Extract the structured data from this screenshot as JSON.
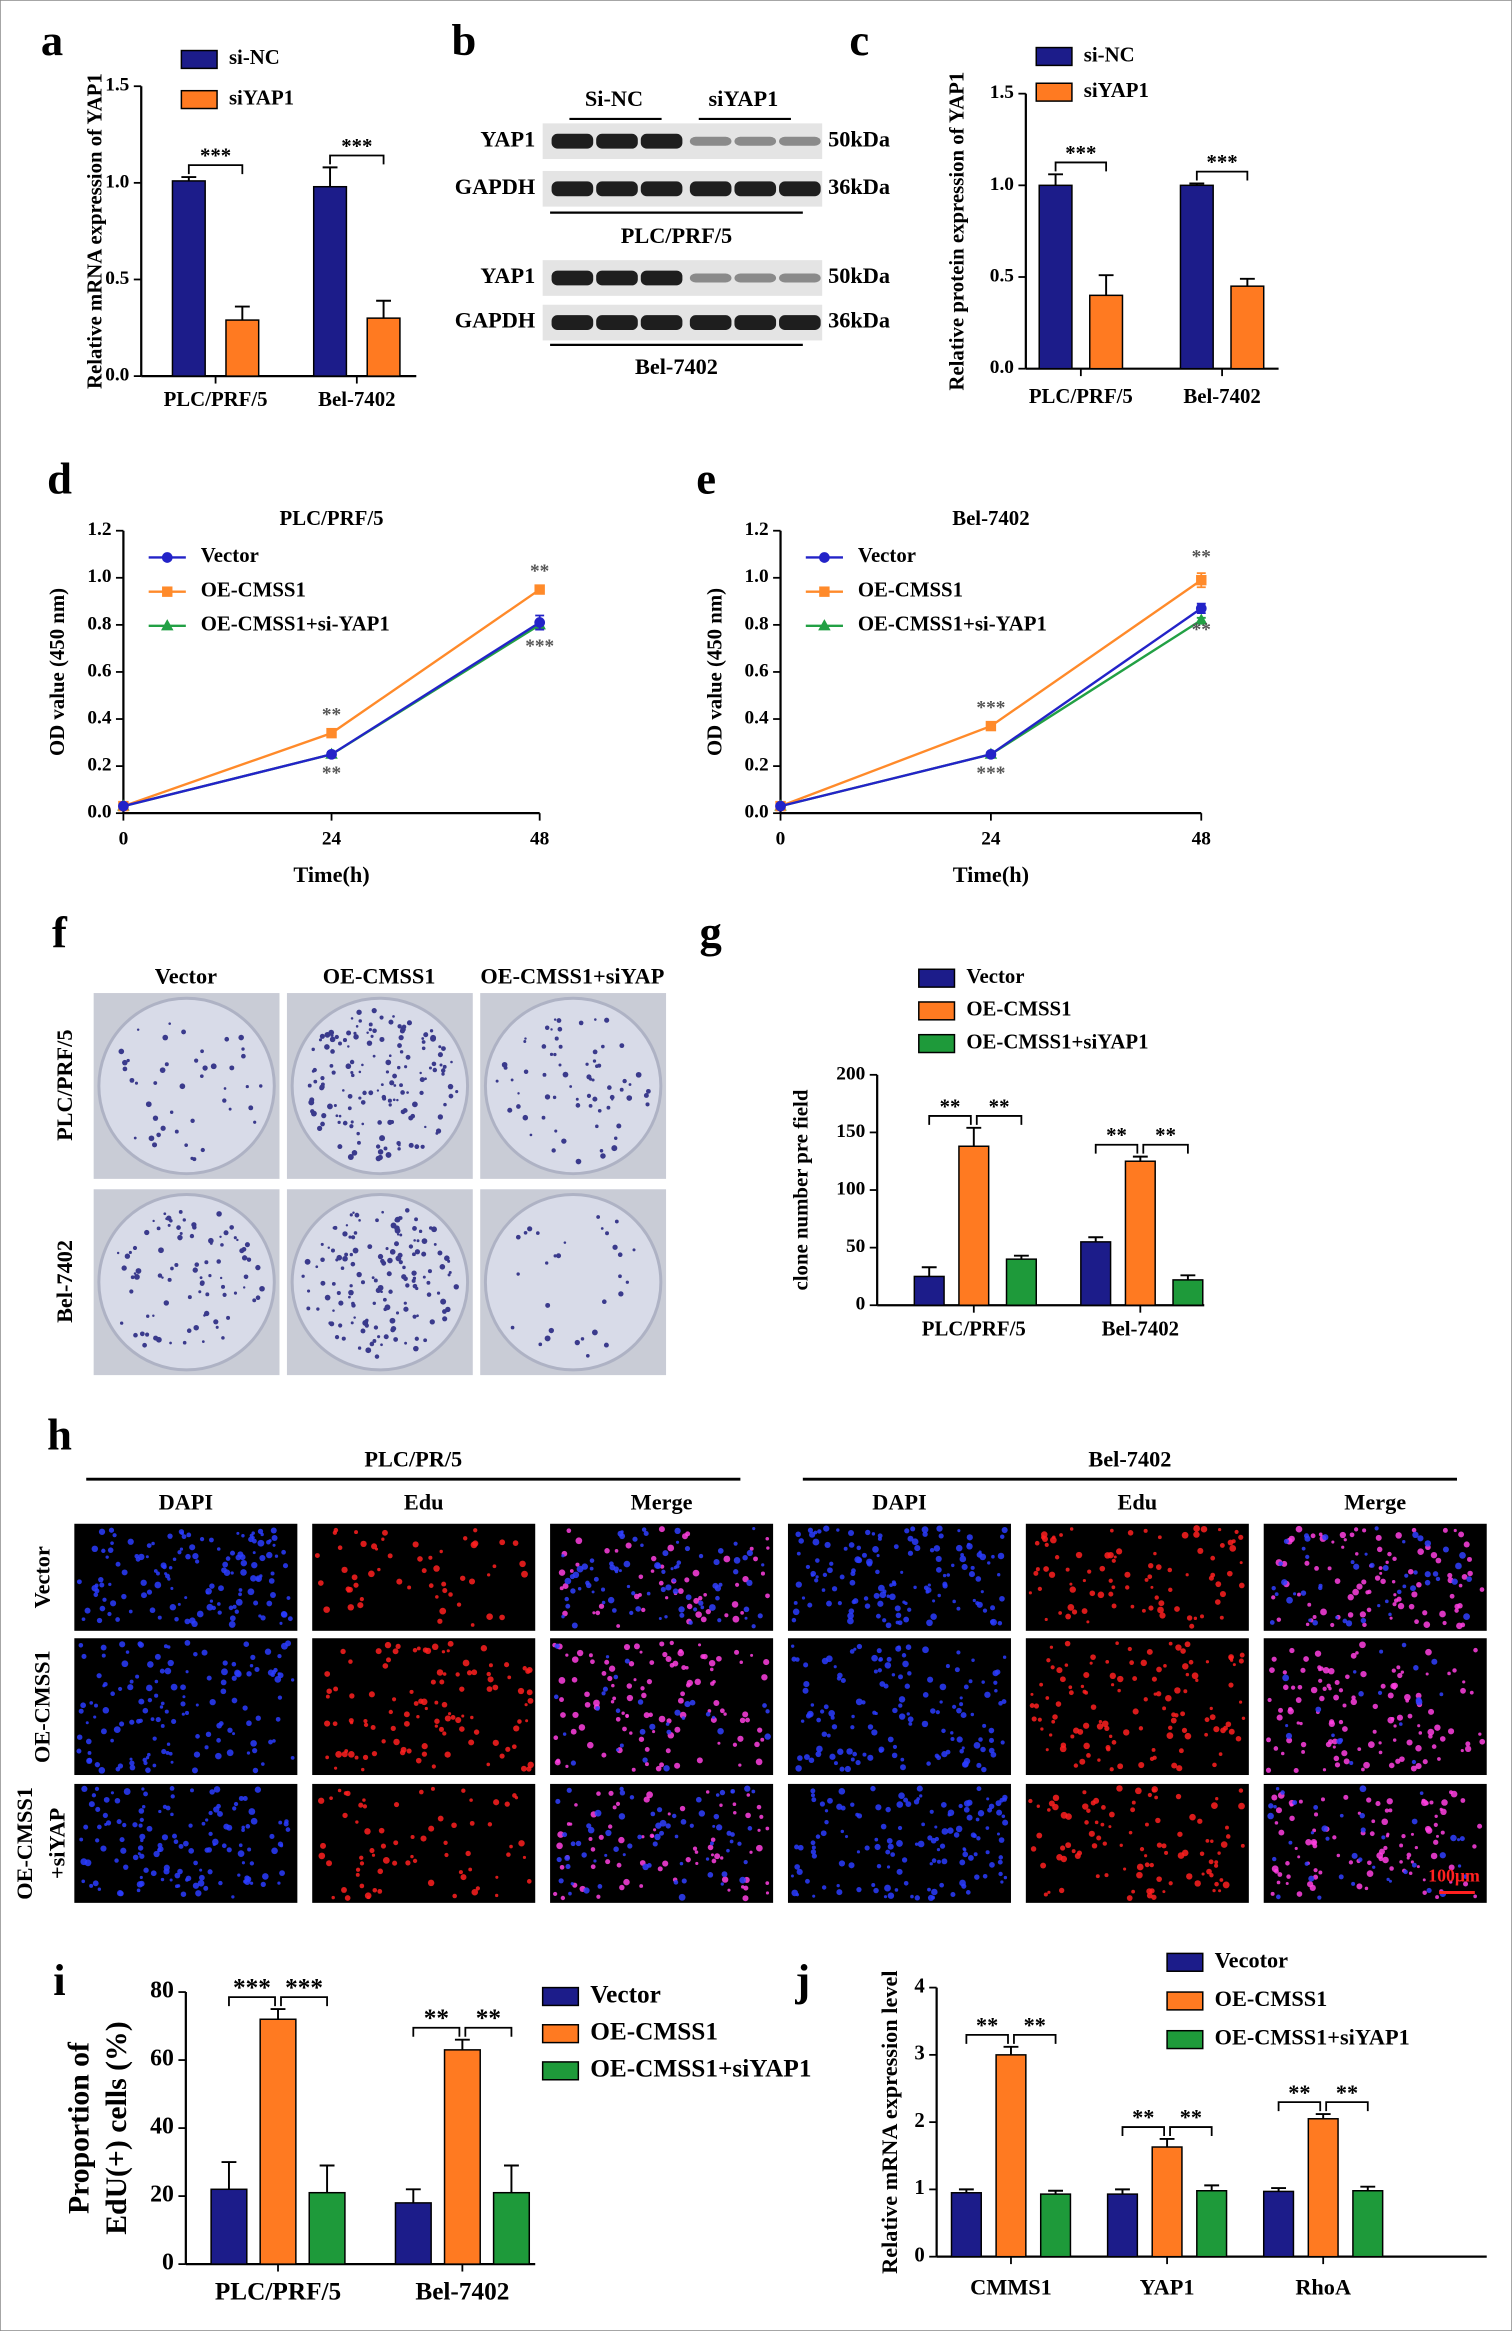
{
  "chart_data": [
    {
      "type": "bar",
      "panel": "a",
      "ylabel": "Relative mRNA expression of YAP1",
      "categories": [
        "PLC/PRF/5",
        "Bel-7402"
      ],
      "series": [
        {
          "name": "si-NC",
          "color": "#1c1c8a",
          "values": [
            1.01,
            0.98
          ],
          "errors": [
            0.02,
            0.1
          ]
        },
        {
          "name": "siYAP1",
          "color": "#ff7a21",
          "values": [
            0.29,
            0.3
          ],
          "errors": [
            0.07,
            0.09
          ]
        }
      ],
      "ylim": [
        0,
        1.5
      ],
      "yticks": [
        {
          "value": 0,
          "label": "0.0"
        },
        0.5,
        {
          "value": 1,
          "label": "1.0"
        },
        1.5
      ],
      "annotations": [
        "***",
        "***"
      ]
    },
    {
      "type": "bar",
      "panel": "c",
      "ylabel": "Relative protein expression of YAP1",
      "categories": [
        "PLC/PRF/5",
        "Bel-7402"
      ],
      "series": [
        {
          "name": "si-NC",
          "color": "#1c1c8a",
          "values": [
            1.0,
            1.0
          ],
          "errors": [
            0.06,
            0.01
          ]
        },
        {
          "name": "siYAP1",
          "color": "#ff7a21",
          "values": [
            0.4,
            0.45
          ],
          "errors": [
            0.11,
            0.04
          ]
        }
      ],
      "ylim": [
        0,
        1.5
      ],
      "yticks": [
        {
          "value": 0,
          "label": "0.0"
        },
        0.5,
        {
          "value": 1,
          "label": "1.0"
        },
        1.5
      ],
      "annotations": [
        "***",
        "***"
      ]
    },
    {
      "type": "line",
      "panel": "d",
      "title": "PLC/PRF/5",
      "xlabel": "Time(h)",
      "ylabel": "OD value (450 nm)",
      "x": [
        0,
        24,
        48
      ],
      "xlim": [
        0,
        48
      ],
      "xticks": [
        0,
        24,
        48
      ],
      "ylim": [
        0,
        1.2
      ],
      "yticks": [
        {
          "value": 0,
          "label": "0.0"
        },
        0.2,
        0.4,
        0.6,
        0.8,
        {
          "value": 1,
          "label": "1.0"
        },
        1.2
      ],
      "series": [
        {
          "name": "Vector",
          "color": "#2323c8",
          "marker": "circle",
          "values": [
            0.03,
            0.25,
            0.81
          ],
          "errors": [
            0.01,
            0.01,
            0.03
          ]
        },
        {
          "name": "OE-CMSS1",
          "color": "#ff8a2a",
          "marker": "square",
          "values": [
            0.03,
            0.34,
            0.95
          ],
          "errors": [
            0.01,
            0.01,
            0.01
          ]
        },
        {
          "name": "OE-CMSS1+si-YAP1",
          "color": "#22a044",
          "marker": "triangle",
          "values": [
            0.03,
            0.25,
            0.8
          ],
          "errors": [
            0.01,
            0.01,
            0.01
          ]
        }
      ],
      "annotations": [
        "**",
        "**",
        "**",
        "***"
      ]
    },
    {
      "type": "line",
      "panel": "e",
      "title": "Bel-7402",
      "xlabel": "Time(h)",
      "ylabel": "OD value (450 nm)",
      "x": [
        0,
        24,
        48
      ],
      "xlim": [
        0,
        48
      ],
      "xticks": [
        0,
        24,
        48
      ],
      "ylim": [
        0,
        1.2
      ],
      "yticks": [
        {
          "value": 0,
          "label": "0.0"
        },
        0.2,
        0.4,
        0.6,
        0.8,
        {
          "value": 1,
          "label": "1.0"
        },
        1.2
      ],
      "series": [
        {
          "name": "Vector",
          "color": "#2323c8",
          "marker": "circle",
          "values": [
            0.03,
            0.25,
            0.87
          ],
          "errors": [
            0.01,
            0.01,
            0.02
          ]
        },
        {
          "name": "OE-CMSS1",
          "color": "#ff8a2a",
          "marker": "square",
          "values": [
            0.03,
            0.37,
            0.99
          ],
          "errors": [
            0.01,
            0.01,
            0.03
          ]
        },
        {
          "name": "OE-CMSS1+si-YAP1",
          "color": "#22a044",
          "marker": "triangle",
          "values": [
            0.03,
            0.25,
            0.82
          ],
          "errors": [
            0.01,
            0.01,
            0.01
          ]
        }
      ],
      "annotations": [
        "***",
        "***",
        "**",
        "**"
      ]
    },
    {
      "type": "bar",
      "panel": "g",
      "ylabel": "clone number pre field",
      "categories": [
        "PLC/PRF/5",
        "Bel-7402"
      ],
      "series": [
        {
          "name": "Vector",
          "color": "#1c1c8a",
          "values": [
            25,
            55
          ],
          "errors": [
            8,
            4
          ]
        },
        {
          "name": "OE-CMSS1",
          "color": "#ff7a21",
          "values": [
            138,
            125
          ],
          "errors": [
            16,
            4
          ]
        },
        {
          "name": "OE-CMSS1+siYAP1",
          "color": "#1e9a3a",
          "values": [
            40,
            22
          ],
          "errors": [
            3,
            4
          ]
        }
      ],
      "ylim": [
        0,
        200
      ],
      "yticks": [
        0,
        50,
        100,
        150,
        200
      ],
      "annotations": [
        "**",
        "**",
        "**",
        "**"
      ]
    },
    {
      "type": "bar",
      "panel": "i",
      "ylabel": [
        "Proportion of",
        "EdU(+) cells (%)"
      ],
      "categories": [
        "PLC/PRF/5",
        "Bel-7402"
      ],
      "series": [
        {
          "name": "Vector",
          "color": "#1c1c8a",
          "values": [
            22,
            18
          ],
          "errors": [
            8,
            4
          ]
        },
        {
          "name": "OE-CMSS1",
          "color": "#ff7a21",
          "values": [
            72,
            63
          ],
          "errors": [
            3,
            3
          ]
        },
        {
          "name": "OE-CMSS1+siYAP1",
          "color": "#1e9a3a",
          "values": [
            21,
            21
          ],
          "errors": [
            8,
            8
          ]
        }
      ],
      "ylim": [
        0,
        80
      ],
      "yticks": [
        0,
        20,
        40,
        60,
        80
      ],
      "annotations": [
        "***",
        "***",
        "**",
        "**"
      ]
    },
    {
      "type": "bar",
      "panel": "j",
      "ylabel": "Relative mRNA expression level",
      "categories": [
        "CMMS1",
        "YAP1",
        "RhoA"
      ],
      "series": [
        {
          "name": "Vecotor",
          "color": "#1c1c8a",
          "values": [
            0.95,
            0.93,
            0.97
          ],
          "errors": [
            0.05,
            0.07,
            0.05
          ]
        },
        {
          "name": "OE-CMSS1",
          "color": "#ff7a21",
          "values": [
            3.0,
            1.63,
            2.05
          ],
          "errors": [
            0.12,
            0.12,
            0.07
          ]
        },
        {
          "name": "OE-CMSS1+siYAP1",
          "color": "#1e9a3a",
          "values": [
            0.93,
            0.98,
            0.98
          ],
          "errors": [
            0.05,
            0.08,
            0.06
          ]
        }
      ],
      "ylim": [
        0,
        4
      ],
      "yticks": [
        0,
        1,
        2,
        3,
        4
      ],
      "annotations": [
        "**",
        "**",
        "**",
        "**",
        "**",
        "**"
      ]
    }
  ],
  "blot": {
    "panel": "b",
    "groups": [
      "Si-NC",
      "siYAP1"
    ],
    "blocks": [
      {
        "rows": [
          {
            "label": "YAP1",
            "size": "50kDa"
          },
          {
            "label": "GAPDH",
            "size": "36kDa"
          }
        ],
        "cell": "PLC/PRF/5"
      },
      {
        "rows": [
          {
            "label": "YAP1",
            "size": "50kDa"
          },
          {
            "label": "GAPDH",
            "size": "36kDa"
          }
        ],
        "cell": "Bel-7402"
      }
    ]
  },
  "colony": {
    "panel": "f",
    "columns": [
      "Vector",
      "OE-CMSS1",
      "OE-CMSS1+siYAP"
    ],
    "rows": [
      "PLC/PRF/5",
      "Bel-7402"
    ]
  },
  "edu": {
    "panel": "h",
    "groups": [
      {
        "title": "PLC/PR/5",
        "columns": [
          "DAPI",
          "Edu",
          "Merge"
        ]
      },
      {
        "title": "Bel-7402",
        "columns": [
          "DAPI",
          "Edu",
          "Merge"
        ]
      }
    ],
    "rows": [
      [
        "Vector"
      ],
      [
        "OE-CMSS1"
      ],
      [
        "OE-CMSS1",
        "+siYAP"
      ]
    ],
    "scale": "100μm"
  }
}
